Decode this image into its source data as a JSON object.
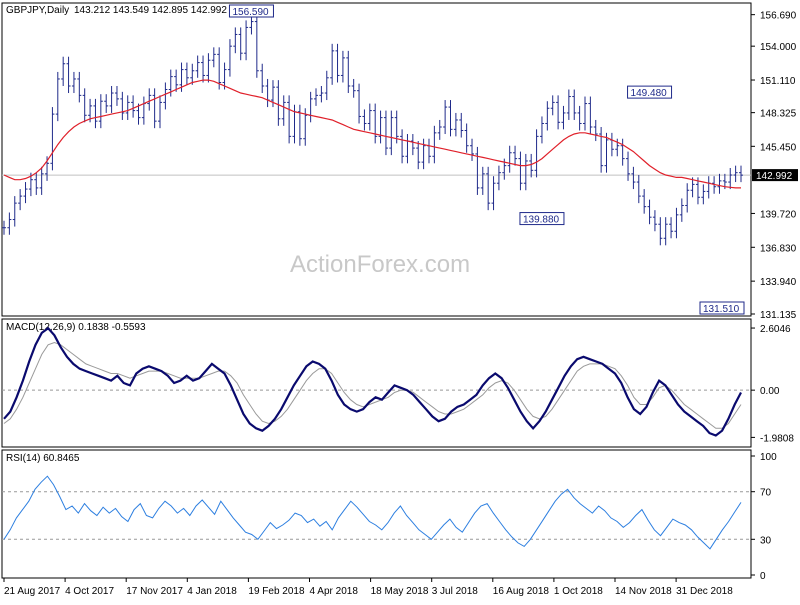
{
  "chart_data": {
    "type": "line",
    "symbol_label": "GBPJPY,Daily",
    "ohlc_text": "143.212 143.549 142.895 142.992",
    "watermark": "ActionForex.com",
    "colors": {
      "price": "#1f2a8a",
      "ma": "#e0202a",
      "macd": "#0a0a6e",
      "signal": "#9a9a9a",
      "rsi": "#2d7fe0",
      "annot_border": "#1f2a8a",
      "last_bg": "#000000"
    },
    "x_labels": [
      "21 Aug 2017",
      "4 Oct 2017",
      "17 Nov 2017",
      "4 Jan 2018",
      "19 Feb 2018",
      "4 Apr 2018",
      "18 May 2018",
      "3 Jul 2018",
      "16 Aug 2018",
      "1 Oct 2018",
      "14 Nov 2018",
      "31 Dec 2018"
    ],
    "price_panel": {
      "ylim": [
        131.135,
        157.6
      ],
      "y_ticks": [
        "156.690",
        "154.000",
        "151.110",
        "148.325",
        "145.450",
        "142.992",
        "139.720",
        "136.830",
        "133.940",
        "131.135"
      ],
      "last_value": "142.992",
      "annotations": [
        {
          "label": "156.590",
          "value": 156.59,
          "index": 46
        },
        {
          "label": "149.480",
          "value": 149.48,
          "index": 120
        },
        {
          "label": "139.880",
          "value": 139.88,
          "index": 100
        },
        {
          "label": "131.510",
          "value": 131.51,
          "index": 139
        }
      ],
      "price_series": [
        138.5,
        139.2,
        140.6,
        141.2,
        141.8,
        142.6,
        141.9,
        143.1,
        144.0,
        148.2,
        151.2,
        152.5,
        150.6,
        151.2,
        149.8,
        148.1,
        148.9,
        147.6,
        149.3,
        148.9,
        150.0,
        149.5,
        148.3,
        149.2,
        148.5,
        147.9,
        149.1,
        149.8,
        147.6,
        149.2,
        150.3,
        151.4,
        150.7,
        152.0,
        151.3,
        151.9,
        152.6,
        151.5,
        152.8,
        153.3,
        150.9,
        152.0,
        154.0,
        155.0,
        153.4,
        155.6,
        156.1,
        151.9,
        150.6,
        149.4,
        150.5,
        147.8,
        149.2,
        146.3,
        148.4,
        146.1,
        148.1,
        149.5,
        149.8,
        150.0,
        151.3,
        153.6,
        151.5,
        153.0,
        150.6,
        150.2,
        148.0,
        147.4,
        148.5,
        146.3,
        147.9,
        145.3,
        147.9,
        146.3,
        144.6,
        145.9,
        145.3,
        144.1,
        145.5,
        144.6,
        146.6,
        147.1,
        148.8,
        146.9,
        147.7,
        146.8,
        145.5,
        144.8,
        141.9,
        143.1,
        140.6,
        142.3,
        143.2,
        143.8,
        144.9,
        144.4,
        142.3,
        144.2,
        143.4,
        146.3,
        147.4,
        148.7,
        149.2,
        147.5,
        148.3,
        149.7,
        148.3,
        147.4,
        149.1,
        147.1,
        146.5,
        143.8,
        146.0,
        145.2,
        145.5,
        144.4,
        143.1,
        142.4,
        141.2,
        140.3,
        139.4,
        138.8,
        137.6,
        138.8,
        138.2,
        139.6,
        140.4,
        141.7,
        142.2,
        141.1,
        141.6,
        142.3,
        142.0,
        142.5,
        142.4,
        143.0,
        143.2,
        142.99
      ],
      "ma_series": [
        143.0,
        142.8,
        142.6,
        142.6,
        142.7,
        142.9,
        143.2,
        143.6,
        144.2,
        144.9,
        145.6,
        146.2,
        146.7,
        147.1,
        147.4,
        147.6,
        147.8,
        147.9,
        148.0,
        148.1,
        148.2,
        148.3,
        148.4,
        148.5,
        148.7,
        148.9,
        149.1,
        149.3,
        149.5,
        149.7,
        149.9,
        150.1,
        150.3,
        150.5,
        150.7,
        150.9,
        151.0,
        151.1,
        151.1,
        151.0,
        150.8,
        150.6,
        150.4,
        150.2,
        150.0,
        149.9,
        149.8,
        149.7,
        149.6,
        149.4,
        149.2,
        149.0,
        148.8,
        148.6,
        148.4,
        148.3,
        148.2,
        148.1,
        148.0,
        147.9,
        147.8,
        147.7,
        147.5,
        147.3,
        147.1,
        146.9,
        146.8,
        146.7,
        146.6,
        146.5,
        146.4,
        146.3,
        146.2,
        146.1,
        146.0,
        145.9,
        145.8,
        145.7,
        145.6,
        145.5,
        145.4,
        145.3,
        145.2,
        145.1,
        145.0,
        144.9,
        144.8,
        144.7,
        144.6,
        144.5,
        144.4,
        144.3,
        144.2,
        144.1,
        144.0,
        143.9,
        143.8,
        143.8,
        143.9,
        144.1,
        144.4,
        144.8,
        145.2,
        145.6,
        146.0,
        146.3,
        146.5,
        146.6,
        146.6,
        146.5,
        146.4,
        146.3,
        146.2,
        146.0,
        145.8,
        145.6,
        145.3,
        145.0,
        144.6,
        144.2,
        143.8,
        143.5,
        143.2,
        143.0,
        142.9,
        142.8,
        142.8,
        142.7,
        142.6,
        142.5,
        142.4,
        142.3,
        142.2,
        142.1,
        142.0,
        141.95,
        141.9,
        141.9
      ]
    },
    "macd_panel": {
      "label": "MACD(12,26,9) 0.1838 -0.5593",
      "ylim": [
        -2.3,
        2.9
      ],
      "y_ticks": [
        "2.6046",
        "0.00",
        "-1.9808"
      ],
      "macd_series": [
        -1.2,
        -0.9,
        -0.3,
        0.4,
        1.2,
        1.9,
        2.4,
        2.6,
        2.3,
        1.8,
        1.4,
        1.1,
        0.9,
        0.8,
        0.7,
        0.6,
        0.5,
        0.4,
        0.6,
        0.3,
        0.2,
        0.7,
        0.9,
        1.0,
        0.9,
        0.8,
        0.6,
        0.3,
        0.4,
        0.6,
        0.4,
        0.5,
        0.8,
        1.1,
        0.9,
        0.7,
        0.2,
        -0.4,
        -1.0,
        -1.4,
        -1.6,
        -1.7,
        -1.5,
        -1.2,
        -0.8,
        -0.3,
        0.2,
        0.6,
        1.0,
        1.2,
        1.1,
        0.9,
        0.4,
        -0.2,
        -0.6,
        -0.8,
        -0.9,
        -0.8,
        -0.5,
        -0.3,
        -0.4,
        -0.1,
        0.2,
        0.1,
        0.0,
        -0.2,
        -0.5,
        -0.8,
        -1.1,
        -1.3,
        -1.2,
        -0.9,
        -0.7,
        -0.6,
        -0.4,
        -0.2,
        0.2,
        0.5,
        0.7,
        0.5,
        0.1,
        -0.4,
        -0.9,
        -1.3,
        -1.6,
        -1.3,
        -0.9,
        -0.4,
        0.1,
        0.6,
        1.0,
        1.3,
        1.4,
        1.3,
        1.2,
        1.1,
        0.9,
        0.7,
        0.3,
        -0.3,
        -0.8,
        -1.0,
        -0.7,
        -0.1,
        0.4,
        0.2,
        -0.2,
        -0.6,
        -0.9,
        -1.1,
        -1.3,
        -1.5,
        -1.8,
        -1.9,
        -1.7,
        -1.2,
        -0.6,
        -0.1
      ],
      "signal_series": [
        -1.4,
        -1.2,
        -0.8,
        -0.3,
        0.3,
        0.9,
        1.5,
        1.9,
        2.0,
        1.9,
        1.7,
        1.5,
        1.3,
        1.1,
        1.0,
        0.9,
        0.8,
        0.7,
        0.7,
        0.6,
        0.5,
        0.6,
        0.7,
        0.8,
        0.8,
        0.8,
        0.7,
        0.6,
        0.5,
        0.5,
        0.5,
        0.5,
        0.6,
        0.7,
        0.8,
        0.8,
        0.6,
        0.3,
        -0.2,
        -0.6,
        -1.0,
        -1.3,
        -1.4,
        -1.3,
        -1.1,
        -0.8,
        -0.4,
        0.0,
        0.4,
        0.7,
        0.9,
        0.9,
        0.7,
        0.3,
        -0.1,
        -0.4,
        -0.6,
        -0.7,
        -0.6,
        -0.5,
        -0.4,
        -0.3,
        -0.1,
        0.0,
        0.0,
        -0.1,
        -0.3,
        -0.5,
        -0.7,
        -0.9,
        -1.0,
        -1.0,
        -0.9,
        -0.8,
        -0.6,
        -0.4,
        -0.2,
        0.1,
        0.3,
        0.4,
        0.3,
        0.0,
        -0.4,
        -0.8,
        -1.1,
        -1.2,
        -1.1,
        -0.8,
        -0.4,
        0.0,
        0.4,
        0.8,
        1.0,
        1.1,
        1.1,
        1.1,
        1.0,
        0.9,
        0.6,
        0.2,
        -0.3,
        -0.6,
        -0.6,
        -0.3,
        0.1,
        0.2,
        0.0,
        -0.3,
        -0.6,
        -0.8,
        -1.0,
        -1.2,
        -1.4,
        -1.6,
        -1.6,
        -1.4,
        -1.0,
        -0.6
      ]
    },
    "rsi_panel": {
      "label": "RSI(14) 60.8465",
      "ylim": [
        0,
        100
      ],
      "y_ticks": [
        "100",
        "70",
        "30",
        "0"
      ],
      "levels": [
        70,
        30
      ],
      "rsi_series": [
        30,
        38,
        48,
        55,
        62,
        72,
        78,
        83,
        76,
        66,
        55,
        58,
        52,
        60,
        54,
        50,
        57,
        52,
        56,
        49,
        45,
        55,
        60,
        50,
        48,
        56,
        62,
        58,
        52,
        56,
        50,
        58,
        63,
        57,
        51,
        62,
        55,
        48,
        42,
        36,
        34,
        30,
        37,
        44,
        39,
        42,
        46,
        52,
        50,
        44,
        47,
        41,
        45,
        38,
        48,
        55,
        62,
        57,
        51,
        45,
        42,
        38,
        44,
        52,
        58,
        50,
        44,
        38,
        34,
        30,
        36,
        42,
        47,
        40,
        36,
        44,
        52,
        58,
        60,
        52,
        45,
        38,
        32,
        27,
        24,
        30,
        38,
        46,
        54,
        62,
        68,
        72,
        65,
        60,
        56,
        52,
        58,
        54,
        48,
        45,
        40,
        44,
        50,
        55,
        46,
        38,
        33,
        40,
        47,
        44,
        42,
        38,
        32,
        27,
        22,
        30,
        38,
        45,
        53,
        61
      ]
    }
  }
}
